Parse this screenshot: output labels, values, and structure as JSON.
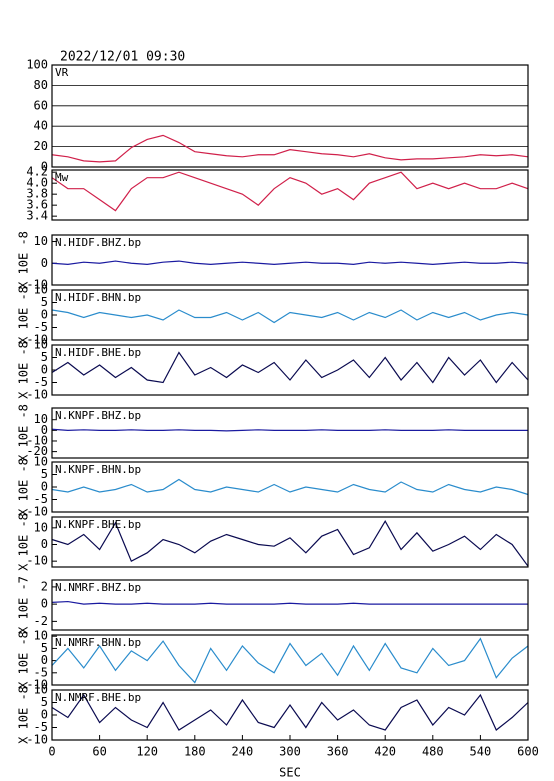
{
  "header": {
    "timestamp": "2022/12/01 09:30"
  },
  "chart_data": [
    {
      "type": "line",
      "title": "VR",
      "color": "#d0204a",
      "grid": true,
      "xlim": [
        0,
        600
      ],
      "ylim": [
        0,
        100
      ],
      "yticks": [
        0,
        20,
        40,
        60,
        80,
        100
      ],
      "x": [
        0,
        20,
        40,
        60,
        80,
        100,
        120,
        140,
        160,
        180,
        200,
        220,
        240,
        260,
        280,
        300,
        320,
        340,
        360,
        380,
        400,
        420,
        440,
        460,
        480,
        500,
        520,
        540,
        560,
        580,
        600
      ],
      "values": [
        12,
        10,
        6,
        5,
        6,
        19,
        27,
        31,
        24,
        15,
        13,
        11,
        10,
        12,
        12,
        17,
        15,
        13,
        12,
        10,
        13,
        9,
        7,
        8,
        8,
        9,
        10,
        12,
        11,
        12,
        10
      ]
    },
    {
      "type": "line",
      "title": "Mw",
      "color": "#d0204a",
      "grid": false,
      "xlim": [
        0,
        600
      ],
      "ylim": [
        3.33,
        4.24
      ],
      "yticks": [
        3.4,
        3.6,
        3.8,
        {
          "value": 4,
          "label": "4.0"
        },
        4.2
      ],
      "x": [
        0,
        20,
        40,
        60,
        80,
        100,
        120,
        140,
        160,
        180,
        200,
        220,
        240,
        260,
        280,
        300,
        320,
        340,
        360,
        380,
        400,
        420,
        440,
        460,
        480,
        500,
        520,
        540,
        560,
        580,
        600
      ],
      "values": [
        4.1,
        3.9,
        3.9,
        3.7,
        3.5,
        3.9,
        4.1,
        4.1,
        4.2,
        4.1,
        4.0,
        3.9,
        3.8,
        3.6,
        3.9,
        4.1,
        4.0,
        3.8,
        3.9,
        3.7,
        4.0,
        4.1,
        4.2,
        3.9,
        4.0,
        3.9,
        4.0,
        3.9,
        3.9,
        4.0,
        3.9
      ]
    },
    {
      "type": "line",
      "title": "N.HIDF.BHZ.bp",
      "ylabel": "X 10E -8",
      "color": "#1a1aa0",
      "xlim": [
        0,
        600
      ],
      "ylim": [
        -10,
        13
      ],
      "yticks": [
        -10,
        0,
        10
      ],
      "x": [
        0,
        20,
        40,
        60,
        80,
        100,
        120,
        140,
        160,
        180,
        200,
        220,
        240,
        260,
        280,
        300,
        320,
        340,
        360,
        380,
        400,
        420,
        440,
        460,
        480,
        500,
        520,
        540,
        560,
        580,
        600
      ],
      "values": [
        0,
        -0.5,
        0.5,
        0,
        1,
        0,
        -0.5,
        0.5,
        1,
        0,
        -0.5,
        0,
        0.5,
        0,
        -0.5,
        0,
        0.5,
        0,
        0,
        -0.5,
        0.5,
        0,
        0.5,
        0,
        -0.5,
        0,
        0.5,
        0,
        0,
        0.5,
        0
      ]
    },
    {
      "type": "line",
      "title": "N.HIDF.BHN.bp",
      "ylabel": "X 10E -8",
      "color": "#2a8ccc",
      "xlim": [
        0,
        600
      ],
      "ylim": [
        -10,
        10
      ],
      "yticks": [
        -10,
        -5,
        0,
        5,
        10
      ],
      "x": [
        0,
        20,
        40,
        60,
        80,
        100,
        120,
        140,
        160,
        180,
        200,
        220,
        240,
        260,
        280,
        300,
        320,
        340,
        360,
        380,
        400,
        420,
        440,
        460,
        480,
        500,
        520,
        540,
        560,
        580,
        600
      ],
      "values": [
        2,
        1,
        -1,
        1,
        0,
        -1,
        0,
        -2,
        2,
        -1,
        -1,
        1,
        -2,
        1,
        -3,
        1,
        0,
        -1,
        1,
        -2,
        1,
        -1,
        2,
        -2,
        1,
        -1,
        1,
        -2,
        0,
        1,
        0
      ]
    },
    {
      "type": "line",
      "title": "N.HIDF.BHE.bp",
      "ylabel": "X 10E -8",
      "color": "#0a0a50",
      "xlim": [
        0,
        600
      ],
      "ylim": [
        -10,
        10
      ],
      "yticks": [
        -10,
        -5,
        0,
        5,
        10
      ],
      "x": [
        0,
        20,
        40,
        60,
        80,
        100,
        120,
        140,
        160,
        180,
        200,
        220,
        240,
        260,
        280,
        300,
        320,
        340,
        360,
        380,
        400,
        420,
        440,
        460,
        480,
        500,
        520,
        540,
        560,
        580,
        600
      ],
      "values": [
        -1,
        3,
        -2,
        2,
        -3,
        1,
        -4,
        -5,
        7,
        -2,
        1,
        -3,
        2,
        -1,
        3,
        -4,
        4,
        -3,
        0,
        4,
        -3,
        5,
        -4,
        3,
        -5,
        5,
        -2,
        4,
        -5,
        3,
        -4
      ]
    },
    {
      "type": "line",
      "title": "N.KNPF.BHZ.bp",
      "ylabel": "X 10E -8",
      "color": "#1a1aa0",
      "xlim": [
        0,
        600
      ],
      "ylim": [
        -26,
        21
      ],
      "yticks": [
        -20,
        -10,
        0,
        10
      ],
      "x": [
        0,
        20,
        40,
        60,
        80,
        100,
        120,
        140,
        160,
        180,
        200,
        220,
        240,
        260,
        280,
        300,
        320,
        340,
        360,
        380,
        400,
        420,
        440,
        460,
        480,
        500,
        520,
        540,
        560,
        580,
        600
      ],
      "values": [
        1,
        0,
        0.5,
        0,
        0,
        0.5,
        0,
        0,
        0.5,
        0,
        0,
        -0.5,
        0,
        0.5,
        0,
        0,
        0,
        0.5,
        0,
        0,
        0,
        0.5,
        0,
        0,
        0,
        0.5,
        0,
        0,
        0,
        0,
        0
      ]
    },
    {
      "type": "line",
      "title": "N.KNPF.BHN.bp",
      "ylabel": "X 10E -8",
      "color": "#2a8ccc",
      "xlim": [
        0,
        600
      ],
      "ylim": [
        -10,
        10
      ],
      "yticks": [
        -10,
        -5,
        0,
        5,
        10
      ],
      "x": [
        0,
        20,
        40,
        60,
        80,
        100,
        120,
        140,
        160,
        180,
        200,
        220,
        240,
        260,
        280,
        300,
        320,
        340,
        360,
        380,
        400,
        420,
        440,
        460,
        480,
        500,
        520,
        540,
        560,
        580,
        600
      ],
      "values": [
        -1,
        -2,
        0,
        -2,
        -1,
        1,
        -2,
        -1,
        3,
        -1,
        -2,
        0,
        -1,
        -2,
        1,
        -2,
        0,
        -1,
        -2,
        1,
        -1,
        -2,
        2,
        -1,
        -2,
        1,
        -1,
        -2,
        0,
        -1,
        -3
      ]
    },
    {
      "type": "line",
      "title": "N.KNPF.BHE.bp",
      "ylabel": "X 10E -8",
      "color": "#0a0a50",
      "xlim": [
        0,
        600
      ],
      "ylim": [
        -13.5,
        16.5
      ],
      "yticks": [
        -10,
        0,
        10
      ],
      "x": [
        0,
        20,
        40,
        60,
        80,
        100,
        120,
        140,
        160,
        180,
        200,
        220,
        240,
        260,
        280,
        300,
        320,
        340,
        360,
        380,
        400,
        420,
        440,
        460,
        480,
        500,
        520,
        540,
        560,
        580,
        600
      ],
      "values": [
        3,
        0,
        6,
        -3,
        13,
        -10,
        -5,
        3,
        0,
        -5,
        2,
        6,
        3,
        0,
        -1,
        4,
        -5,
        5,
        9,
        -6,
        -2,
        14,
        -3,
        7,
        -4,
        0,
        5,
        -3,
        6,
        0,
        -13
      ]
    },
    {
      "type": "line",
      "title": "N.NMRF.BHZ.bp",
      "ylabel": "X 10E -7",
      "color": "#1a1aa0",
      "xlim": [
        0,
        600
      ],
      "ylim": [
        -3,
        2.8
      ],
      "yticks": [
        -2,
        0,
        2
      ],
      "x": [
        0,
        20,
        40,
        60,
        80,
        100,
        120,
        140,
        160,
        180,
        200,
        220,
        240,
        260,
        280,
        300,
        320,
        340,
        360,
        380,
        400,
        420,
        440,
        460,
        480,
        500,
        520,
        540,
        560,
        580,
        600
      ],
      "values": [
        0.2,
        0.3,
        0,
        0.1,
        0,
        0,
        0.1,
        0,
        0,
        0,
        0.1,
        0,
        0,
        0,
        0,
        0.1,
        0,
        0,
        0,
        0.1,
        0,
        0,
        0,
        0,
        0,
        0,
        0,
        0,
        0,
        0,
        0
      ]
    },
    {
      "type": "line",
      "title": "N.NMRF.BHN.bp",
      "ylabel": "X 10E -8",
      "color": "#2a8ccc",
      "xlim": [
        0,
        600
      ],
      "ylim": [
        -10,
        10.5
      ],
      "yticks": [
        -10,
        -5,
        0,
        5,
        10
      ],
      "x": [
        0,
        20,
        40,
        60,
        80,
        100,
        120,
        140,
        160,
        180,
        200,
        220,
        240,
        260,
        280,
        300,
        320,
        340,
        360,
        380,
        400,
        420,
        440,
        460,
        480,
        500,
        520,
        540,
        560,
        580,
        600
      ],
      "values": [
        -2,
        5,
        -3,
        6,
        -4,
        4,
        0,
        8,
        -2,
        -9,
        5,
        -4,
        6,
        -1,
        -5,
        7,
        -2,
        3,
        -6,
        6,
        -4,
        7,
        -3,
        -5,
        5,
        -2,
        0,
        9,
        -7,
        1,
        6
      ]
    },
    {
      "type": "line",
      "title": "N.NMRF.BHE.bp",
      "ylabel": "X 10E -8",
      "color": "#0a0a50",
      "xlim": [
        0,
        600
      ],
      "ylim": [
        -10,
        10
      ],
      "yticks": [
        -10,
        -5,
        0,
        5,
        10
      ],
      "xticks": [
        0,
        60,
        120,
        180,
        240,
        300,
        360,
        420,
        480,
        540,
        600
      ],
      "xlabel": "SEC",
      "x": [
        0,
        20,
        40,
        60,
        80,
        100,
        120,
        140,
        160,
        180,
        200,
        220,
        240,
        260,
        280,
        300,
        320,
        340,
        360,
        380,
        400,
        420,
        440,
        460,
        480,
        500,
        520,
        540,
        560,
        580,
        600
      ],
      "values": [
        3,
        -1,
        8,
        -3,
        3,
        -2,
        -5,
        5,
        -6,
        -2,
        2,
        -4,
        6,
        -3,
        -5,
        4,
        -5,
        5,
        -2,
        2,
        -4,
        -6,
        3,
        6,
        -4,
        3,
        0,
        8,
        -6,
        -1,
        5
      ]
    }
  ]
}
